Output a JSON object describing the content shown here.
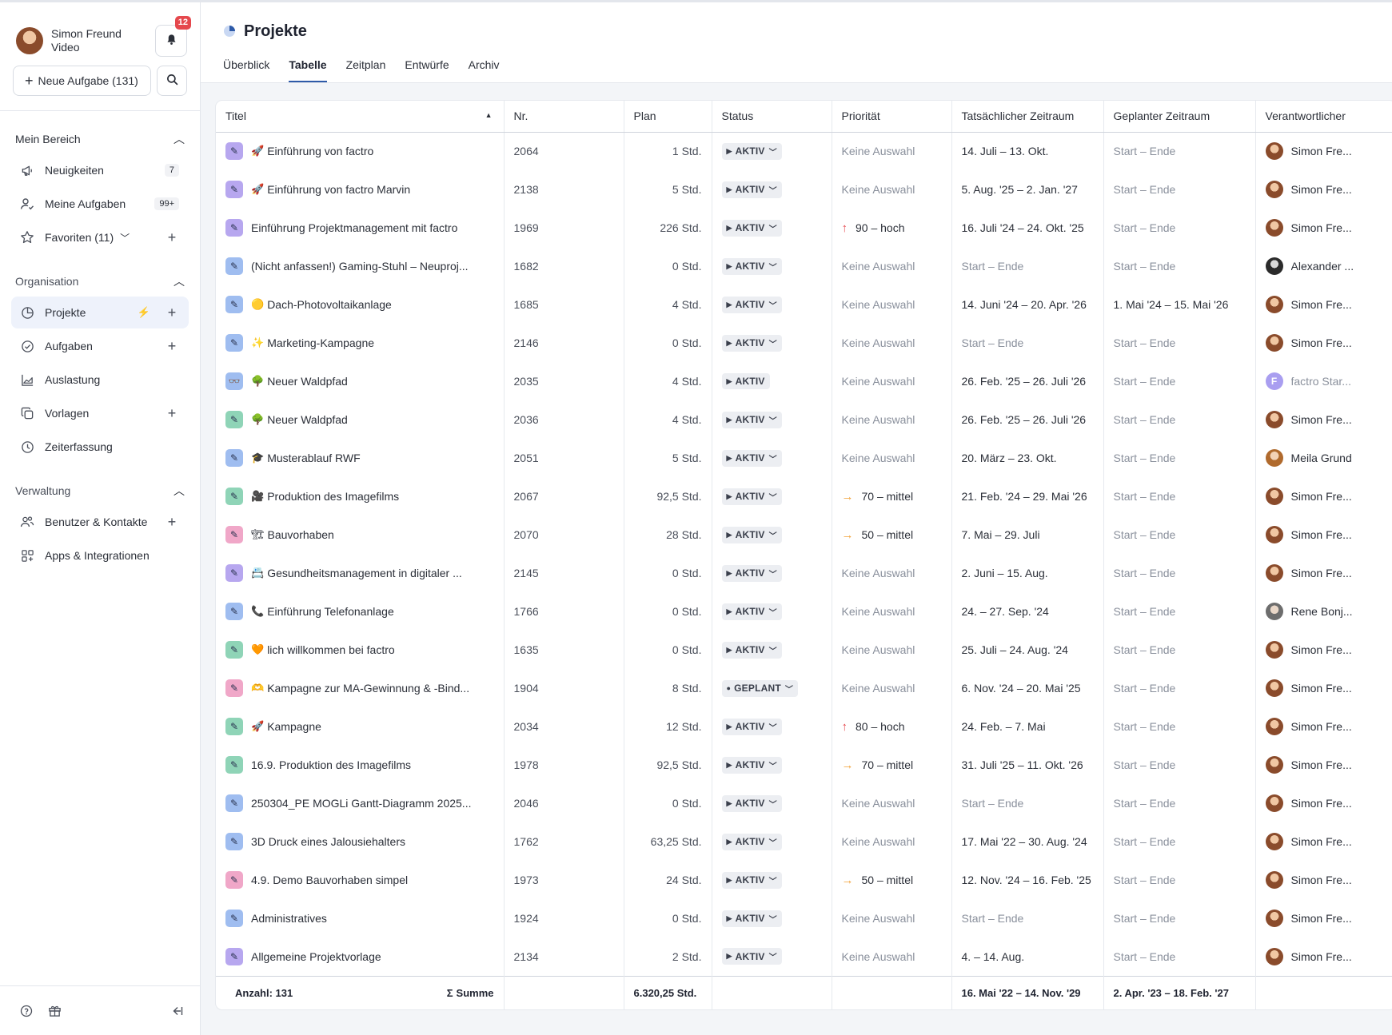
{
  "user": {
    "name": "Simon Freund",
    "subtitle": "Video",
    "notifications": "12"
  },
  "sidebar": {
    "new_task_label": "Neue Aufgabe (131)",
    "sections": [
      {
        "title": "Mein Bereich",
        "items": [
          {
            "icon": "megaphone-icon",
            "label": "Neuigkeiten",
            "count": "7"
          },
          {
            "icon": "user-check-icon",
            "label": "Meine Aufgaben",
            "count": "99+"
          },
          {
            "icon": "star-icon",
            "label": "Favoriten (11)"
          }
        ]
      },
      {
        "title": "Organisation",
        "items": [
          {
            "icon": "pie-chart-icon",
            "label": "Projekte"
          },
          {
            "icon": "check-circle-icon",
            "label": "Aufgaben"
          },
          {
            "icon": "area-chart-icon",
            "label": "Auslastung"
          },
          {
            "icon": "copy-icon",
            "label": "Vorlagen"
          },
          {
            "icon": "clock-icon",
            "label": "Zeiterfassung"
          }
        ]
      },
      {
        "title": "Verwaltung",
        "items": [
          {
            "icon": "users-icon",
            "label": "Benutzer & Kontakte"
          },
          {
            "icon": "apps-icon",
            "label": "Apps & Integrationen"
          }
        ]
      }
    ]
  },
  "page": {
    "title": "Projekte"
  },
  "tabs": [
    "Überblick",
    "Tabelle",
    "Zeitplan",
    "Entwürfe",
    "Archiv"
  ],
  "table": {
    "columns": [
      "Titel",
      "Nr.",
      "Plan",
      "Status",
      "Priorität",
      "Tatsächlicher Zeitraum",
      "Geplanter Zeitraum",
      "Verantwortlicher"
    ],
    "rows": [
      {
        "badge": "purple",
        "emoji": "🚀",
        "title": "Einführung von factro",
        "nr": "2064",
        "plan": "1 Std.",
        "status": "AKTIV",
        "prio": "Keine Auswahl",
        "actual": "14. Juli – 13. Okt.",
        "planned": "Start – Ende",
        "resp": "Simon Fre..."
      },
      {
        "badge": "purple",
        "emoji": "🚀",
        "title": "Einführung von factro Marvin",
        "nr": "2138",
        "plan": "5 Std.",
        "status": "AKTIV",
        "prio": "Keine Auswahl",
        "actual": "5. Aug. '25 – 2. Jan. '27",
        "planned": "Start – Ende",
        "resp": "Simon Fre..."
      },
      {
        "badge": "purple",
        "emoji": "",
        "title": "Einführung Projektmanagement mit factro",
        "nr": "1969",
        "plan": "226 Std.",
        "status": "AKTIV",
        "prio": "90 – hoch",
        "actual": "16. Juli '24 – 24. Okt. '25",
        "planned": "Start – Ende",
        "resp": "Simon Fre..."
      },
      {
        "badge": "blue",
        "emoji": "",
        "title": "(Nicht anfassen!) Gaming-Stuhl – Neuproj...",
        "nr": "1682",
        "plan": "0 Std.",
        "status": "AKTIV",
        "prio": "Keine Auswahl",
        "actual": "Start – Ende",
        "planned": "Start – Ende",
        "resp": "Alexander ..."
      },
      {
        "badge": "blue",
        "emoji": "🟡",
        "title": "Dach-Photovoltaikanlage",
        "nr": "1685",
        "plan": "4 Std.",
        "status": "AKTIV",
        "prio": "Keine Auswahl",
        "actual": "14. Juni '24 – 20. Apr. '26",
        "planned": "1. Mai '24 – 15. Mai '26",
        "resp": "Simon Fre..."
      },
      {
        "badge": "blue",
        "emoji": "✨",
        "title": "Marketing-Kampagne",
        "nr": "2146",
        "plan": "0 Std.",
        "status": "AKTIV",
        "prio": "Keine Auswahl",
        "actual": "Start – Ende",
        "planned": "Start – Ende",
        "resp": "Simon Fre..."
      },
      {
        "badge": "blue",
        "emoji": "🌳",
        "title": "Neuer Waldpfad",
        "nr": "2035",
        "plan": "4 Std.",
        "status": "AKTIV",
        "prio": "Keine Auswahl",
        "actual": "26. Feb. '25 – 26. Juli '26",
        "planned": "Start – Ende",
        "resp": "factro Star..."
      },
      {
        "badge": "green",
        "emoji": "🌳",
        "title": "Neuer Waldpfad",
        "nr": "2036",
        "plan": "4 Std.",
        "status": "AKTIV",
        "prio": "Keine Auswahl",
        "actual": "26. Feb. '25 – 26. Juli '26",
        "planned": "Start – Ende",
        "resp": "Simon Fre..."
      },
      {
        "badge": "blue",
        "emoji": "🎓",
        "title": "Musterablauf RWF",
        "nr": "2051",
        "plan": "5 Std.",
        "status": "AKTIV",
        "prio": "Keine Auswahl",
        "actual": "20. März – 23. Okt.",
        "planned": "Start – Ende",
        "resp": "Meila Grund"
      },
      {
        "badge": "green",
        "emoji": "🎥",
        "title": "Produktion des Imagefilms",
        "nr": "2067",
        "plan": "92,5 Std.",
        "status": "AKTIV",
        "prio": "70 – mittel",
        "actual": "21. Feb. '24 – 29. Mai '26",
        "planned": "Start – Ende",
        "resp": "Simon Fre..."
      },
      {
        "badge": "pink",
        "emoji": "🏗",
        "title": "Bauvorhaben",
        "nr": "2070",
        "plan": "28 Std.",
        "status": "AKTIV",
        "prio": "50 – mittel",
        "actual": "7. Mai – 29. Juli",
        "planned": "Start – Ende",
        "resp": "Simon Fre..."
      },
      {
        "badge": "purple",
        "emoji": "📇",
        "title": "Gesundheitsmanagement in digitaler ...",
        "nr": "2145",
        "plan": "0 Std.",
        "status": "AKTIV",
        "prio": "Keine Auswahl",
        "actual": "2. Juni – 15. Aug.",
        "planned": "Start – Ende",
        "resp": "Simon Fre..."
      },
      {
        "badge": "blue",
        "emoji": "📞",
        "title": "Einführung Telefonanlage",
        "nr": "1766",
        "plan": "0 Std.",
        "status": "AKTIV",
        "prio": "Keine Auswahl",
        "actual": "24. – 27. Sep. '24",
        "planned": "Start – Ende",
        "resp": "Rene Bonj..."
      },
      {
        "badge": "green",
        "emoji": "🧡",
        "title": "lich willkommen bei factro",
        "nr": "1635",
        "plan": "0 Std.",
        "status": "AKTIV",
        "prio": "Keine Auswahl",
        "actual": "25. Juli – 24. Aug. '24",
        "planned": "Start – Ende",
        "resp": "Simon Fre..."
      },
      {
        "badge": "pink",
        "emoji": "🫶",
        "title": "Kampagne zur MA-Gewinnung & -Bind...",
        "nr": "1904",
        "plan": "8 Std.",
        "status": "GEPLANT",
        "prio": "Keine Auswahl",
        "actual": "6. Nov. '24 – 20. Mai '25",
        "planned": "Start – Ende",
        "resp": "Simon Fre..."
      },
      {
        "badge": "green",
        "emoji": "🚀",
        "title": "Kampagne",
        "nr": "2034",
        "plan": "12 Std.",
        "status": "AKTIV",
        "prio": "80 – hoch",
        "actual": "24. Feb. – 7. Mai",
        "planned": "Start – Ende",
        "resp": "Simon Fre..."
      },
      {
        "badge": "green",
        "emoji": "",
        "title": "16.9. Produktion des Imagefilms",
        "nr": "1978",
        "plan": "92,5 Std.",
        "status": "AKTIV",
        "prio": "70 – mittel",
        "actual": "31. Juli '25 – 11. Okt. '26",
        "planned": "Start – Ende",
        "resp": "Simon Fre..."
      },
      {
        "badge": "blue",
        "emoji": "",
        "title": "250304_PE MOGLi Gantt-Diagramm 2025...",
        "nr": "2046",
        "plan": "0 Std.",
        "status": "AKTIV",
        "prio": "Keine Auswahl",
        "actual": "Start – Ende",
        "planned": "Start – Ende",
        "resp": "Simon Fre..."
      },
      {
        "badge": "blue",
        "emoji": "",
        "title": "3D Druck eines Jalousiehalters",
        "nr": "1762",
        "plan": "63,25 Std.",
        "status": "AKTIV",
        "prio": "Keine Auswahl",
        "actual": "17. Mai '22 – 30. Aug. '24",
        "planned": "Start – Ende",
        "resp": "Simon Fre..."
      },
      {
        "badge": "pink",
        "emoji": "",
        "title": "4.9. Demo Bauvorhaben simpel",
        "nr": "1973",
        "plan": "24 Std.",
        "status": "AKTIV",
        "prio": "50 – mittel",
        "actual": "12. Nov. '24 – 16. Feb. '25",
        "planned": "Start – Ende",
        "resp": "Simon Fre..."
      },
      {
        "badge": "blue",
        "emoji": "",
        "title": "Administratives",
        "nr": "1924",
        "plan": "0 Std.",
        "status": "AKTIV",
        "prio": "Keine Auswahl",
        "actual": "Start – Ende",
        "planned": "Start – Ende",
        "resp": "Simon Fre..."
      },
      {
        "badge": "purple",
        "emoji": "",
        "title": "Allgemeine Projektvorlage",
        "nr": "2134",
        "plan": "2 Std.",
        "status": "AKTIV",
        "prio": "Keine Auswahl",
        "actual": "4. – 14. Aug.",
        "planned": "Start – Ende",
        "resp": "Simon Fre..."
      }
    ],
    "footer": {
      "count": "Anzahl: 131",
      "sum_label": "Summe",
      "plan_total": "6.320,25 Std.",
      "actual_total": "16. Mai '22 – 14. Nov. '29",
      "planned_total": "2. Apr. '23 – 18. Feb. '27"
    }
  },
  "colors": {
    "accent": "#2e5aa8",
    "prio_high": "#e5484d",
    "prio_medium": "#f2a33a",
    "badge_bell": "#e5484d"
  }
}
